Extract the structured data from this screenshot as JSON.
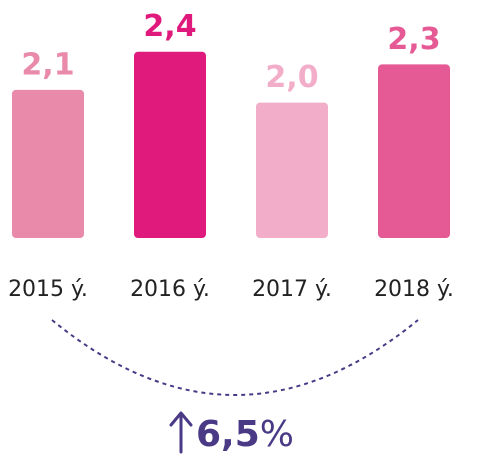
{
  "chart_data": {
    "type": "bar",
    "categories": [
      "2015 ý.",
      "2016 ý.",
      "2017 ý.",
      "2018 ý."
    ],
    "values": [
      2.1,
      2.4,
      2.0,
      2.3
    ],
    "value_labels": [
      "2,1",
      "2,4",
      "2,0",
      "2,3"
    ],
    "colors": [
      "#e98aab",
      "#e0197d",
      "#f2adc8",
      "#e55a95"
    ],
    "ylim": [
      0.935,
      2.5
    ],
    "annotation": {
      "value": "6,5",
      "unit": "%"
    }
  }
}
